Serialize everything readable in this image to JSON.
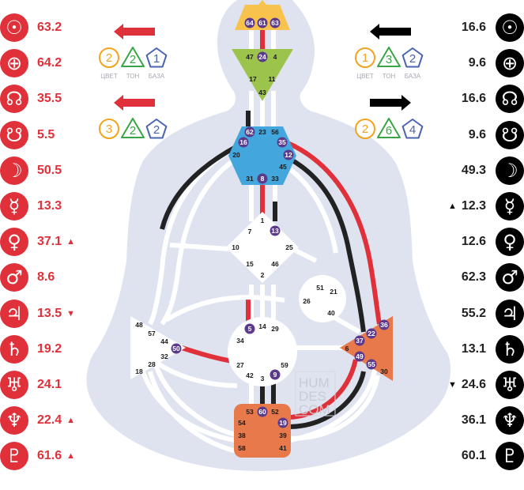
{
  "design_planets": [
    {
      "symbol": "☉",
      "value": "63.2",
      "arrow": ""
    },
    {
      "symbol": "⊕",
      "value": "64.2",
      "arrow": ""
    },
    {
      "symbol": "☊",
      "value": "35.5",
      "arrow": ""
    },
    {
      "symbol": "☋",
      "value": "5.5",
      "arrow": ""
    },
    {
      "symbol": "☽",
      "value": "50.5",
      "arrow": ""
    },
    {
      "symbol": "☿",
      "value": "13.3",
      "arrow": ""
    },
    {
      "symbol": "♀",
      "value": "37.1",
      "arrow": "▲"
    },
    {
      "symbol": "♂",
      "value": "8.6",
      "arrow": ""
    },
    {
      "symbol": "♃",
      "value": "13.5",
      "arrow": "▼"
    },
    {
      "symbol": "♄",
      "value": "19.2",
      "arrow": ""
    },
    {
      "symbol": "♅",
      "value": "24.1",
      "arrow": ""
    },
    {
      "symbol": "♆",
      "value": "22.4",
      "arrow": "▲"
    },
    {
      "symbol": "♇",
      "value": "61.6",
      "arrow": "▲"
    }
  ],
  "personality_planets": [
    {
      "symbol": "☉",
      "value": "16.6",
      "arrow": ""
    },
    {
      "symbol": "⊕",
      "value": "9.6",
      "arrow": ""
    },
    {
      "symbol": "☊",
      "value": "16.6",
      "arrow": ""
    },
    {
      "symbol": "☋",
      "value": "9.6",
      "arrow": ""
    },
    {
      "symbol": "☽",
      "value": "49.3",
      "arrow": ""
    },
    {
      "symbol": "☿",
      "value": "12.3",
      "arrow": "▲"
    },
    {
      "symbol": "♀",
      "value": "12.6",
      "arrow": ""
    },
    {
      "symbol": "♂",
      "value": "62.3",
      "arrow": ""
    },
    {
      "symbol": "♃",
      "value": "55.2",
      "arrow": ""
    },
    {
      "symbol": "♄",
      "value": "13.1",
      "arrow": ""
    },
    {
      "symbol": "♅",
      "value": "24.6",
      "arrow": "▼"
    },
    {
      "symbol": "♆",
      "value": "36.1",
      "arrow": ""
    },
    {
      "symbol": "♇",
      "value": "60.1",
      "arrow": ""
    }
  ],
  "variables": {
    "labels": {
      "color": "ЦВЕТ",
      "tone": "ТОН",
      "base": "БАЗА"
    },
    "top_left": {
      "direction": "left",
      "color": "2",
      "tone": "2",
      "base": "1"
    },
    "top_right": {
      "direction": "left",
      "color": "1",
      "tone": "3",
      "base": "2"
    },
    "bottom_left": {
      "direction": "left",
      "color": "3",
      "tone": "2",
      "base": "2"
    },
    "bottom_right": {
      "direction": "right",
      "color": "2",
      "tone": "6",
      "base": "4"
    }
  },
  "watermark": [
    "HUM",
    "DES",
    "COM"
  ],
  "colors": {
    "design_red": "#e0303a",
    "personality_black": "#000000",
    "head": "#f8c34c",
    "ajna": "#9cc34c",
    "throat": "#43a6dc",
    "root": "#e8794a",
    "solar_plexus": "#e8794a",
    "silhouette": "#dfe3ef",
    "gate_badge": "#5b3a8c",
    "color_ring": "#f1a31d",
    "tone_ring": "#3aa546",
    "base_ring": "#4a64b0"
  },
  "centers": {
    "head": {
      "gates": [
        "64",
        "61",
        "63"
      ],
      "defined_gates": [
        "64",
        "61",
        "63"
      ]
    },
    "ajna": {
      "gates": [
        "47",
        "24",
        "4",
        "17",
        "11",
        "43"
      ],
      "defined_gates": [
        "24"
      ]
    },
    "throat": {
      "gates": [
        "62",
        "23",
        "56",
        "16",
        "35",
        "20",
        "12",
        "45",
        "31",
        "8",
        "33"
      ],
      "defined_gates": [
        "62",
        "16",
        "35",
        "12",
        "8"
      ]
    },
    "g": {
      "gates": [
        "1",
        "7",
        "13",
        "25",
        "10",
        "15",
        "46",
        "2"
      ],
      "defined_gates": [
        "13"
      ]
    },
    "heart": {
      "gates": [
        "51",
        "21",
        "26",
        "40"
      ],
      "defined_gates": []
    },
    "spleen": {
      "gates": [
        "48",
        "57",
        "44",
        "50",
        "32",
        "28",
        "18"
      ],
      "defined_gates": [
        "50"
      ]
    },
    "sacral": {
      "gates": [
        "5",
        "14",
        "29",
        "34",
        "27",
        "59",
        "42",
        "3",
        "9"
      ],
      "defined_gates": [
        "5",
        "9"
      ]
    },
    "solar": {
      "gates": [
        "36",
        "22",
        "6",
        "37",
        "49",
        "55",
        "30"
      ],
      "defined_gates": [
        "36",
        "22",
        "37",
        "49",
        "55"
      ]
    },
    "root": {
      "gates": [
        "60",
        "53",
        "52",
        "54",
        "19",
        "38",
        "39",
        "58",
        "41"
      ],
      "defined_gates": [
        "60",
        "19"
      ]
    }
  }
}
